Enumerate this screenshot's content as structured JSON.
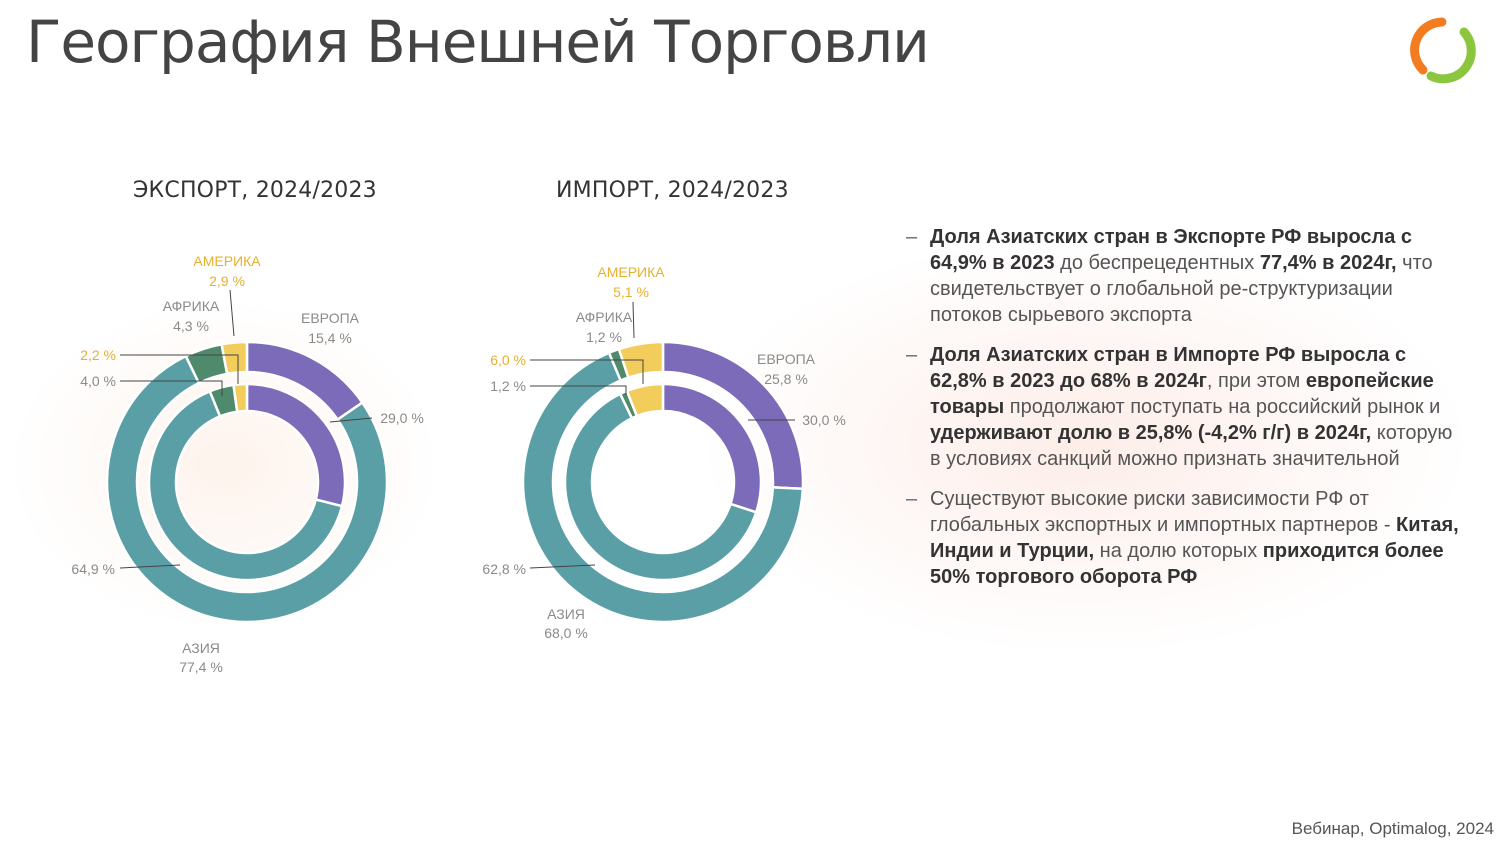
{
  "page": {
    "title": "География Внешней Торговли",
    "footer": "Вебинар, Optimalog, 2024"
  },
  "colors": {
    "europe": "#7b6bb8",
    "asia": "#5a9fa6",
    "africa": "#4f8a6c",
    "america": "#f2cd5c",
    "label_grey": "#8a8a8a",
    "label_america": "#e7b02c",
    "logo_orange": "#f47c20",
    "logo_green": "#8cc63f"
  },
  "chart_data": [
    {
      "type": "donut",
      "title": "ЭКСПОРТ, 2024/2023",
      "rings": [
        {
          "name": "2024",
          "values": [
            {
              "name": "ЕВРОПА",
              "value": 15.4
            },
            {
              "name": "АЗИЯ",
              "value": 77.4
            },
            {
              "name": "АФРИКА",
              "value": 4.3
            },
            {
              "name": "АМЕРИКА",
              "value": 2.9
            }
          ]
        },
        {
          "name": "2023",
          "values": [
            {
              "name": "ЕВРОПА",
              "value": 29.0
            },
            {
              "name": "АЗИЯ",
              "value": 64.9
            },
            {
              "name": "АФРИКА",
              "value": 4.0
            },
            {
              "name": "АМЕРИКА",
              "value": 2.2
            }
          ]
        }
      ],
      "labels": {
        "europe_name": "ЕВРОПА",
        "europe_2024": "15,4 %",
        "europe_2023": "29,0 %",
        "asia_name": "АЗИЯ",
        "asia_2024": "77,4 %",
        "asia_2023": "64,9 %",
        "africa_name": "АФРИКА",
        "africa_2024": "4,3 %",
        "africa_2023": "4,0 %",
        "america_name": "АМЕРИКА",
        "america_2024": "2,9 %",
        "america_2023": "2,2 %"
      }
    },
    {
      "type": "donut",
      "title": "ИМПОРТ, 2024/2023",
      "rings": [
        {
          "name": "2024",
          "values": [
            {
              "name": "ЕВРОПА",
              "value": 25.8
            },
            {
              "name": "АЗИЯ",
              "value": 68.0
            },
            {
              "name": "АФРИКА",
              "value": 1.2
            },
            {
              "name": "АМЕРИКА",
              "value": 5.1
            }
          ]
        },
        {
          "name": "2023",
          "values": [
            {
              "name": "ЕВРОПА",
              "value": 30.0
            },
            {
              "name": "АЗИЯ",
              "value": 62.8
            },
            {
              "name": "АФРИКА",
              "value": 1.2
            },
            {
              "name": "АМЕРИКА",
              "value": 6.0
            }
          ]
        }
      ],
      "labels": {
        "europe_name": "ЕВРОПА",
        "europe_2024": "25,8 %",
        "europe_2023": "30,0 %",
        "asia_name": "АЗИЯ",
        "asia_2024": "68,0 %",
        "asia_2023": "62,8 %",
        "africa_name": "АФРИКА",
        "africa_2024": "1,2 %",
        "africa_2023": "1,2 %",
        "america_name": "АМЕРИКА",
        "america_2024": "5,1 %",
        "america_2023": "6,0 %"
      }
    }
  ],
  "notes": [
    [
      {
        "text": "Доля Азиатских стран в Экспорте РФ выросла с 64,9% в 2023",
        "bold": true
      },
      {
        "text": " до беспрецедентных ",
        "bold": false
      },
      {
        "text": "77,4% в 2024г,",
        "bold": true
      },
      {
        "text": " что свидетельствует о глобальной ре-структуризации потоков сырьевого экспорта",
        "bold": false
      }
    ],
    [
      {
        "text": "Доля Азиатских стран в Импорте РФ выросла с 62,8% в 2023 до 68% в 2024г",
        "bold": true
      },
      {
        "text": ", при этом ",
        "bold": false
      },
      {
        "text": "европейские товары",
        "bold": true
      },
      {
        "text": " продолжают поступать на российский рынок и ",
        "bold": false
      },
      {
        "text": "удерживают долю в 25,8% (-4,2% г/г) в 2024г,",
        "bold": true
      },
      {
        "text": " которую в условиях санкций можно признать значительной",
        "bold": false
      }
    ],
    [
      {
        "text": "Существуют высокие риски зависимости РФ от глобальных экспортных и импортных партнеров - ",
        "bold": false
      },
      {
        "text": "Китая, Индии и Турции,",
        "bold": true
      },
      {
        "text": " на долю которых ",
        "bold": false
      },
      {
        "text": "приходится более 50% торгового оборота РФ",
        "bold": true
      }
    ]
  ]
}
